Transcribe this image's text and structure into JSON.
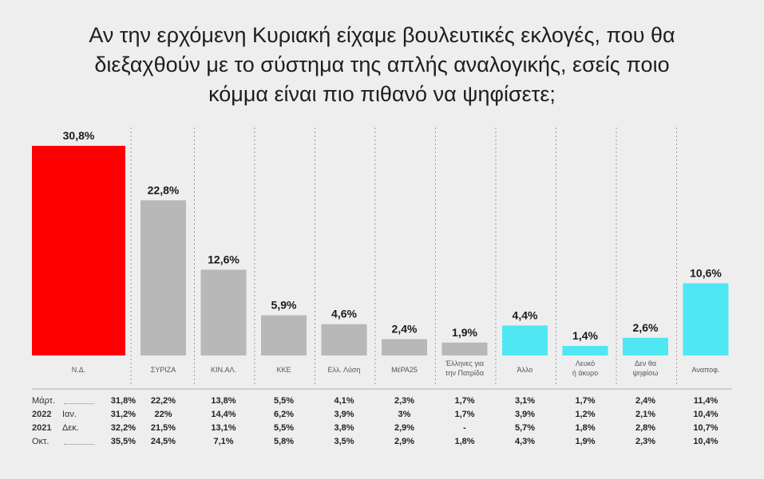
{
  "title_lines": [
    "Αν την ερχόμενη Κυριακή είχαμε βουλευτικές εκλογές, που θα",
    "διεξαχθούν με το σύστημα της απλής αναλογικής, εσείς ποιο",
    "κόμμα είναι πιο πιθανό να ψηφίσετε;"
  ],
  "colors": {
    "nd": "#ff0000",
    "party": "#b8b8b8",
    "other": "#4fe7f3",
    "background": "#eeeeee"
  },
  "chart_data": {
    "type": "bar",
    "title": "Αν την ερχόμενη Κυριακή είχαμε βουλευτικές εκλογές, που θα διεξαχθούν με το σύστημα της απλής αναλογικής, εσείς ποιο κόμμα είναι πιο πιθανό να ψηφίσετε;",
    "categories": [
      [
        "Ν.Δ."
      ],
      [
        "ΣΥΡΙΖΑ"
      ],
      [
        "ΚΙΝ.ΑΛ."
      ],
      [
        "ΚΚΕ"
      ],
      [
        "Ελλ. Λύση"
      ],
      [
        "ΜέΡΑ25"
      ],
      [
        "Έλληνες για",
        "την Πατρίδα"
      ],
      [
        "Άλλο"
      ],
      [
        "Λευκό",
        "ή άκυρο"
      ],
      [
        "Δεν θα",
        "ψηφίσω"
      ],
      [
        "Αναποφ."
      ]
    ],
    "values": [
      30.8,
      22.8,
      12.6,
      5.9,
      4.6,
      2.4,
      1.9,
      4.4,
      1.4,
      2.6,
      10.6
    ],
    "labels": [
      "30,8%",
      "22,8%",
      "12,6%",
      "5,9%",
      "4,6%",
      "2,4%",
      "1,9%",
      "4,4%",
      "1,4%",
      "2,6%",
      "10,6%"
    ],
    "color_keys": [
      "nd",
      "party",
      "party",
      "party",
      "party",
      "party",
      "party",
      "other",
      "other",
      "other",
      "other"
    ],
    "ylim": [
      0,
      32
    ],
    "grid": false,
    "legend": "none",
    "previous": [
      {
        "year": "",
        "month": "Μάρτ.",
        "values": [
          "31,8%",
          "22,2%",
          "13,8%",
          "5,5%",
          "4,1%",
          "2,3%",
          "1,7%",
          "3,1%",
          "1,7%",
          "2,4%",
          "11,4%"
        ]
      },
      {
        "year": "2022",
        "month": "Ιαν.",
        "values": [
          "31,2%",
          "22%",
          "14,4%",
          "6,2%",
          "3,9%",
          "3%",
          "1,7%",
          "3,9%",
          "1,2%",
          "2,1%",
          "10,4%"
        ]
      },
      {
        "year": "2021",
        "month": "Δεκ.",
        "values": [
          "32,2%",
          "21,5%",
          "13,1%",
          "5,5%",
          "3,8%",
          "2,9%",
          "-",
          "5,7%",
          "1,8%",
          "2,8%",
          "10,7%"
        ]
      },
      {
        "year": "",
        "month": "Οκτ.",
        "values": [
          "35,5%",
          "24,5%",
          "7,1%",
          "5,8%",
          "3,5%",
          "2,9%",
          "1,8%",
          "4,3%",
          "1,9%",
          "2,3%",
          "10,4%"
        ]
      }
    ]
  }
}
